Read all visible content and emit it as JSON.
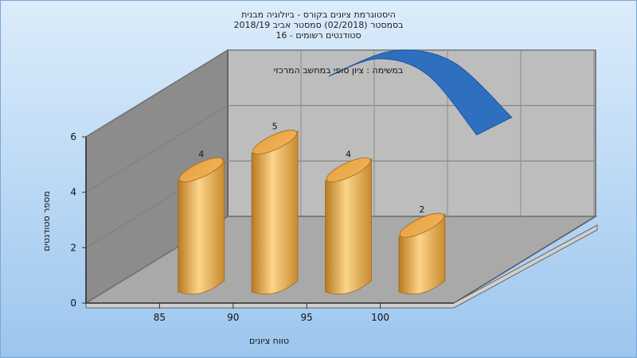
{
  "chart_data": {
    "type": "bar",
    "title_lines": [
      "היסטוגרמת ציונים בקורס - ביולוגיה מבנית",
      "בסמסטר  (02/2018)  סמסטר אביב 2018/19",
      "סטודנטים רשומים - 16"
    ],
    "annotation": "במשימה : ציון סופי במחשב המרכזי",
    "xlabel": "טווח ציונים",
    "ylabel": "מספר סטודנטים",
    "x_ticks": [
      "85",
      "90",
      "95",
      "100"
    ],
    "y_ticks": [
      "0",
      "2",
      "4",
      "6"
    ],
    "ylim": [
      0,
      6
    ],
    "categories": [
      "85",
      "90",
      "95",
      "100"
    ],
    "values": [
      4,
      5,
      4,
      2
    ],
    "data_labels": [
      "4",
      "5",
      "4",
      "2"
    ],
    "trend_line": {
      "type": "curve",
      "x": [
        90,
        94,
        98,
        102
      ],
      "y": [
        5.8,
        6.6,
        6.2,
        4.2
      ]
    },
    "colors": {
      "bar_light": "#fcd48a",
      "bar_mid": "#f0b155",
      "bar_dark": "#b87a22",
      "curve": "#2f6fc0",
      "curve_dark": "#1f55a0",
      "back_wall": "#bdbdbd",
      "side_wall": "#8c8c8c",
      "floor": "#a9a9a9",
      "background_top": "#dcecfb",
      "background_bottom": "#9cc6ee"
    },
    "grid": true,
    "legend": "none"
  }
}
